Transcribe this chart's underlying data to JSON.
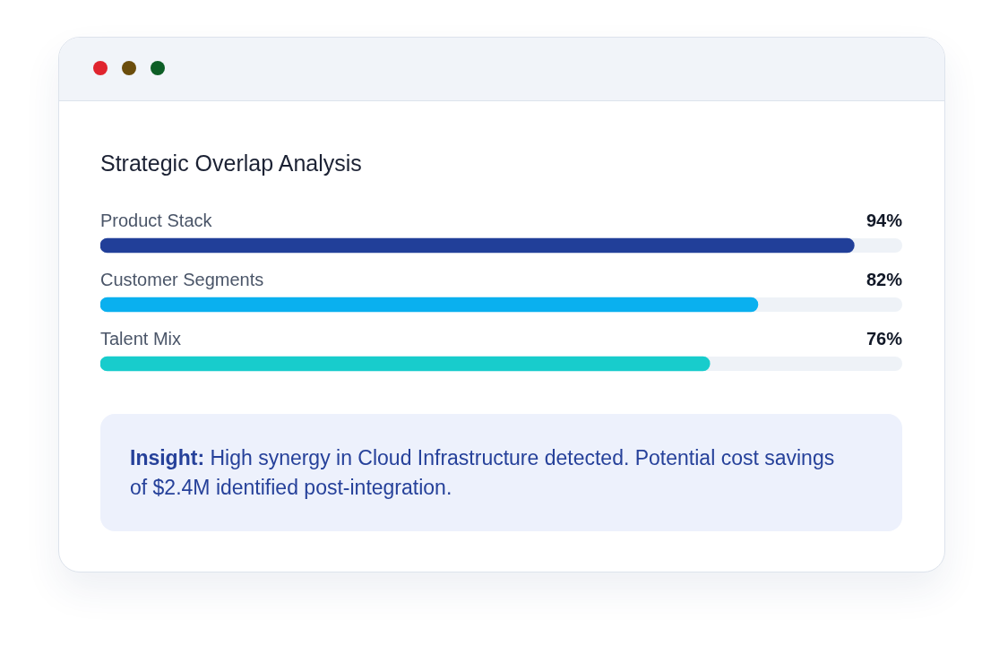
{
  "chart_data": {
    "type": "bar",
    "orientation": "horizontal",
    "title": "Strategic Overlap Analysis",
    "categories": [
      "Product Stack",
      "Customer Segments",
      "Talent Mix"
    ],
    "values": [
      94,
      82,
      76
    ],
    "colors": [
      "#213f99",
      "#0ab0ef",
      "#18cccc"
    ],
    "value_labels": [
      "94%",
      "82%",
      "76%"
    ],
    "xlim": [
      0,
      100
    ],
    "tick_labels": false,
    "legend": false,
    "annotations": [
      "Insight: High synergy in Cloud Infrastructure detected. Potential cost savings of $2.4M identified post-integration."
    ]
  }
}
